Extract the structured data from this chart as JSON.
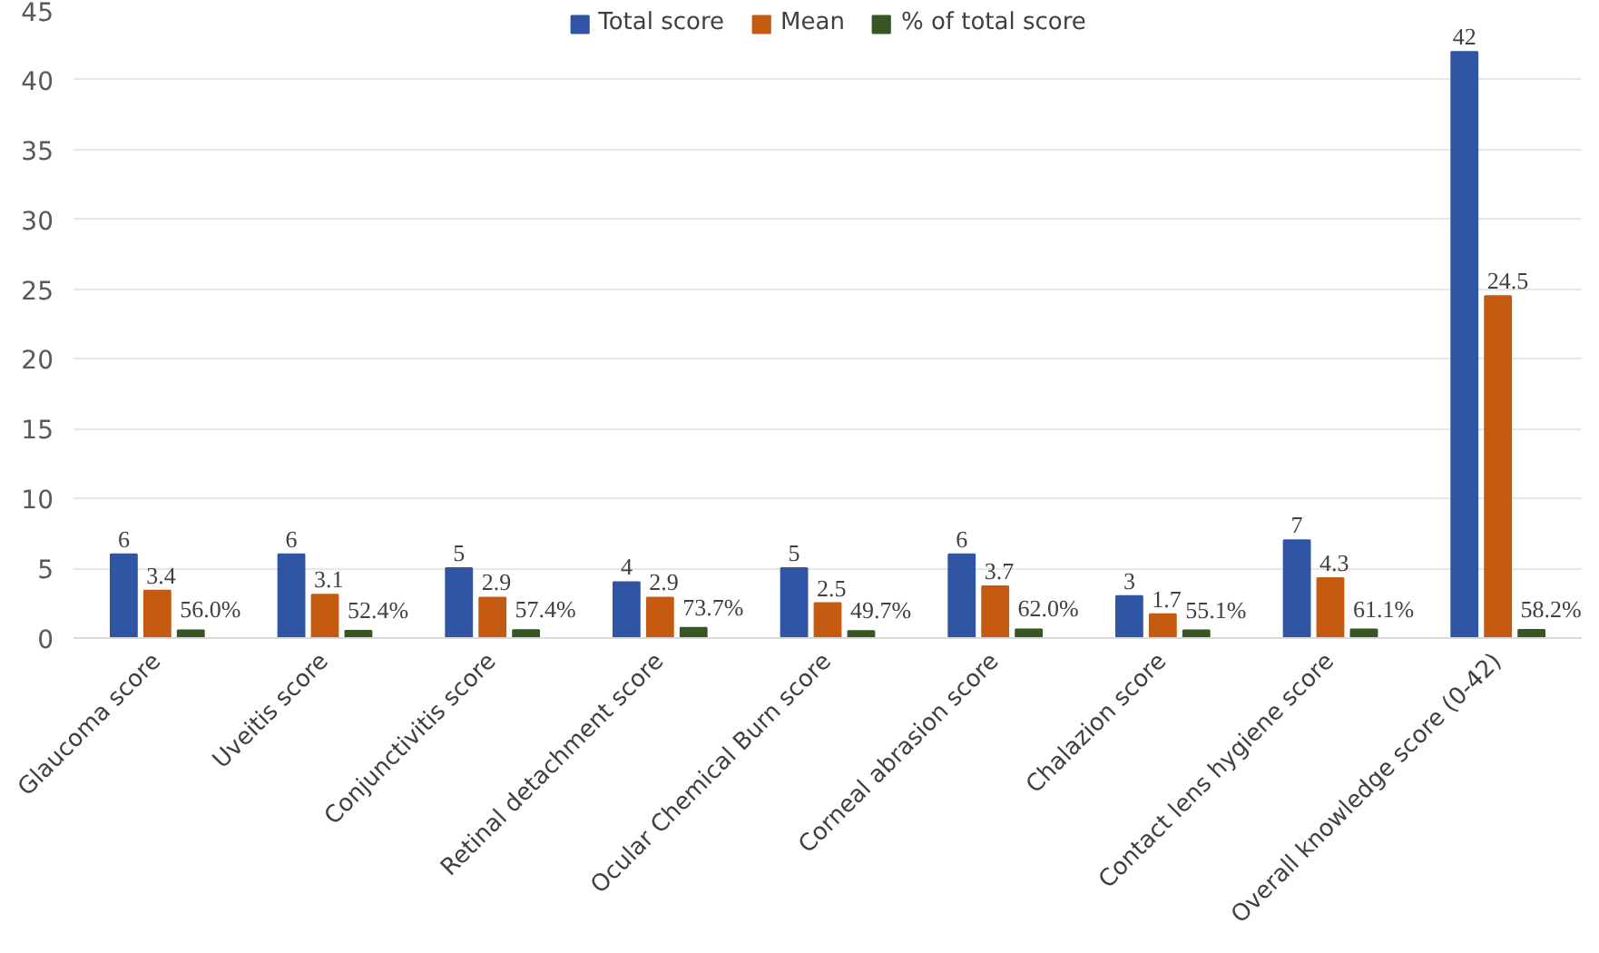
{
  "chart_data": {
    "type": "bar",
    "categories": [
      "Glaucoma score",
      "Uveitis score",
      "Conjunctivitis score",
      "Retinal detachment score",
      "Ocular Chemical Burn score",
      "Corneal abrasion score",
      "Chalazion score",
      "Contact lens hygiene score",
      "Overall knowledge score (0-42)"
    ],
    "series": [
      {
        "name": "Total score",
        "color": "#2f55a4",
        "values": [
          6,
          6,
          5,
          4,
          5,
          6,
          3,
          7,
          42
        ],
        "value_labels": [
          "6",
          "6",
          "5",
          "4",
          "5",
          "6",
          "3",
          "7",
          "42"
        ]
      },
      {
        "name": "Mean",
        "color": "#c55a11",
        "values": [
          3.4,
          3.1,
          2.9,
          2.9,
          2.5,
          3.7,
          1.7,
          4.3,
          24.5
        ],
        "value_labels": [
          "3.4",
          "3.1",
          "2.9",
          "2.9",
          "2.5",
          "3.7",
          "1.7",
          "4.3",
          "24.5"
        ]
      },
      {
        "name": "% of total score",
        "color": "#375623",
        "values": [
          0.56,
          0.524,
          0.574,
          0.737,
          0.497,
          0.62,
          0.551,
          0.611,
          0.582
        ],
        "value_labels": [
          "56.0%",
          "52.4%",
          "57.4%",
          "73.7%",
          "49.7%",
          "62.0%",
          "55.1%",
          "61.1%",
          "58.2%"
        ]
      }
    ],
    "ylim": [
      0,
      45
    ],
    "yticks": [
      0,
      5,
      10,
      15,
      20,
      25,
      30,
      35,
      40,
      45
    ],
    "grid": "y",
    "legend": "top"
  }
}
